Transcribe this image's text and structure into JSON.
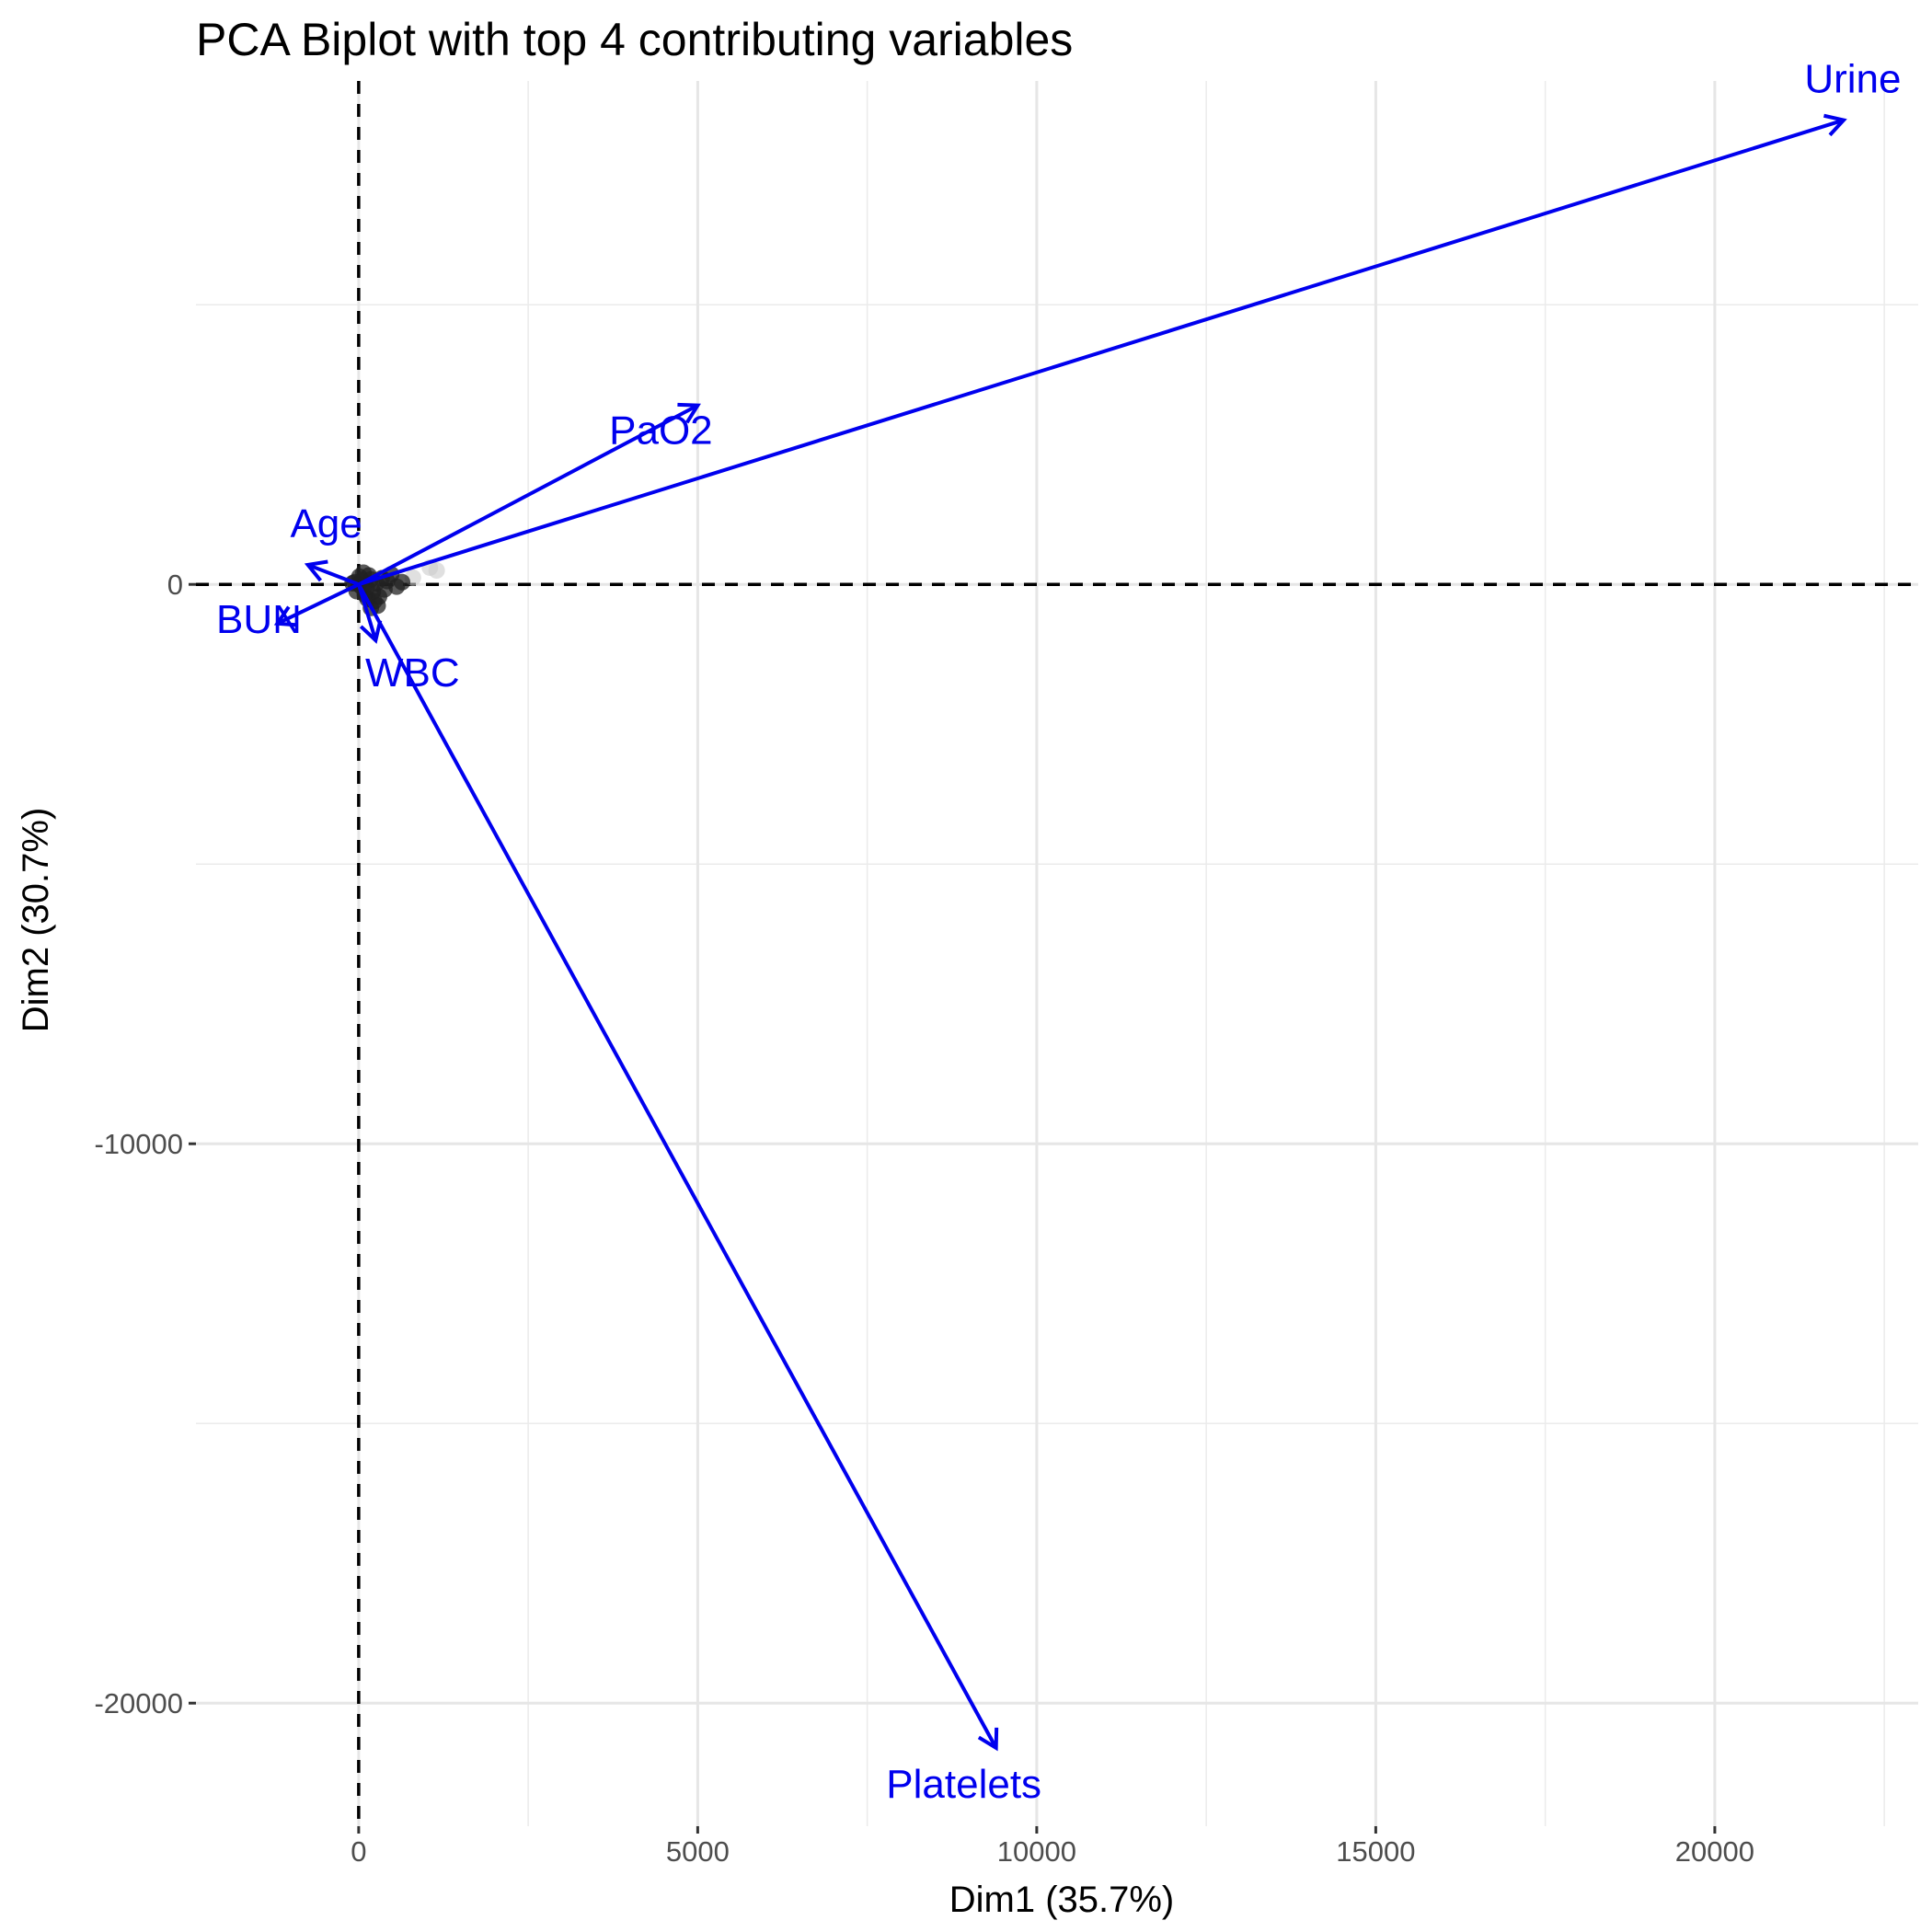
{
  "chart_data": {
    "type": "biplot",
    "title": "PCA Biplot with top 4 contributing variables",
    "xlabel": "Dim1 (35.7%)",
    "ylabel": "Dim2 (30.7%)",
    "xlim": [
      -2400,
      23000
    ],
    "ylim": [
      -22200,
      9000
    ],
    "x_major_ticks": [
      0,
      5000,
      10000,
      15000,
      20000
    ],
    "x_minor_ticks": [
      2500,
      7500,
      12500,
      17500,
      22500
    ],
    "y_major_ticks": [
      -20000,
      -10000,
      0
    ],
    "y_minor_ticks": [
      -15000,
      -5000,
      5000
    ],
    "x_tick_labels": [
      "0",
      "5000",
      "10000",
      "15000",
      "20000"
    ],
    "y_tick_labels": [
      "-20000",
      "-10000",
      "0"
    ],
    "reference_lines": {
      "x": 0,
      "y": 0,
      "style": "dashed"
    },
    "grid": true,
    "arrow_color": "#0000ee",
    "variables": [
      {
        "name": "Urine",
        "x": 21900,
        "y": 8300
      },
      {
        "name": "PaO2",
        "x": 5000,
        "y": 3200
      },
      {
        "name": "Age",
        "x": -750,
        "y": 350
      },
      {
        "name": "BUN",
        "x": -1200,
        "y": -700
      },
      {
        "name": "WBC",
        "x": 250,
        "y": -1000
      },
      {
        "name": "Platelets",
        "x": 9400,
        "y": -20800
      }
    ],
    "individuals": [
      {
        "x": 0,
        "y": 0
      },
      {
        "x": 50,
        "y": 80
      },
      {
        "x": -60,
        "y": 40
      },
      {
        "x": 120,
        "y": -60
      },
      {
        "x": 180,
        "y": 90
      },
      {
        "x": -30,
        "y": -120
      },
      {
        "x": 260,
        "y": 20
      },
      {
        "x": 90,
        "y": -180
      },
      {
        "x": 340,
        "y": 110
      },
      {
        "x": -90,
        "y": 20
      },
      {
        "x": 40,
        "y": -40
      },
      {
        "x": 210,
        "y": -130
      },
      {
        "x": 420,
        "y": 60
      },
      {
        "x": 150,
        "y": 160
      },
      {
        "x": 300,
        "y": -220
      },
      {
        "x": 10,
        "y": 140
      },
      {
        "x": 560,
        "y": -40
      },
      {
        "x": 230,
        "y": -300
      },
      {
        "x": 480,
        "y": 180
      },
      {
        "x": 800,
        "y": 120
      },
      {
        "x": 1050,
        "y": 300
      },
      {
        "x": 1150,
        "y": 250
      },
      {
        "x": 380,
        "y": -90
      },
      {
        "x": 70,
        "y": 210
      },
      {
        "x": 640,
        "y": 40
      },
      {
        "x": 280,
        "y": -380
      },
      {
        "x": 130,
        "y": -260
      },
      {
        "x": 180,
        "y": -420
      }
    ]
  }
}
